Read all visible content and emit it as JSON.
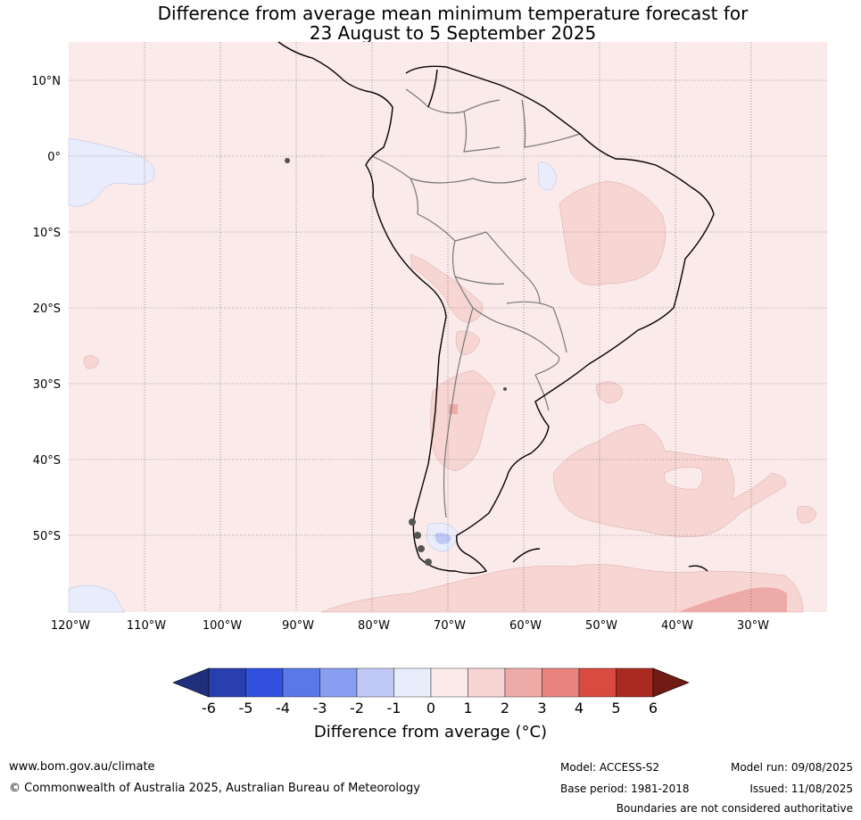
{
  "title": {
    "line1": "Difference from average mean minimum temperature forecast for",
    "line2": "23 August to 5 September 2025"
  },
  "map": {
    "lat_labels": [
      "10°N",
      "0°",
      "10°S",
      "20°S",
      "30°S",
      "40°S",
      "50°S"
    ],
    "lon_labels": [
      "120°W",
      "110°W",
      "100°W",
      "90°W",
      "80°W",
      "70°W",
      "60°W",
      "50°W",
      "40°W",
      "30°W"
    ]
  },
  "colorbar": {
    "ticks": [
      "-6",
      "-5",
      "-4",
      "-3",
      "-2",
      "-1",
      "0",
      "1",
      "2",
      "3",
      "4",
      "5",
      "6"
    ],
    "colors": [
      "#283fad",
      "#3150e0",
      "#5a78e8",
      "#889ef0",
      "#c0c9f5",
      "#e8ecfb",
      "#fbeaea",
      "#f6d5d3",
      "#edaaa6",
      "#e8847d",
      "#d94a40",
      "#aa2a22"
    ],
    "low_color": "#1f2f7c",
    "high_color": "#701b14",
    "label": "Difference from average (°C)"
  },
  "footer": {
    "website": "www.bom.gov.au/climate",
    "copyright": "© Commonwealth of Australia 2025, Australian Bureau of Meteorology",
    "model": "Model: ACCESS-S2",
    "base_period": "Base period: 1981-2018",
    "model_run": "Model run: 09/08/2025",
    "issued": "Issued: 11/08/2025",
    "disclaimer": "Boundaries are not considered authoritative"
  }
}
